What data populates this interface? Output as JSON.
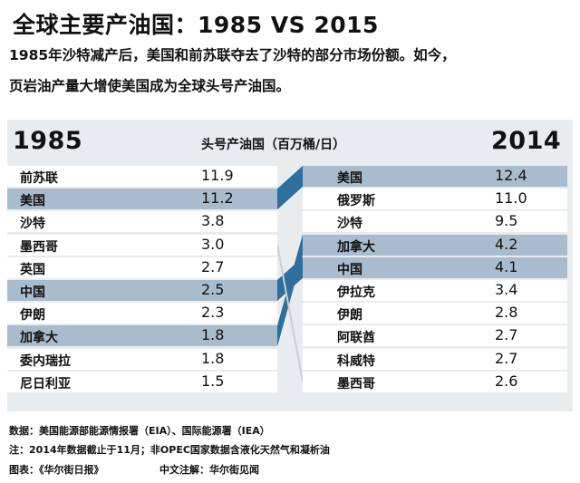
{
  "header": {
    "title": "全球主要产油国：1985 VS 2015",
    "subtitle_line1": "1985年沙特减产后，美国和前苏联夺去了沙特的部分市场份额。如今，",
    "subtitle_line2": "页岩油产量大增使美国成为全球头号产油国。"
  },
  "chart_data": {
    "type": "table",
    "unit_label": "头号产油国（百万桶/日）",
    "left": {
      "year": "1985",
      "rows": [
        {
          "country": "前苏联",
          "value": "11.9",
          "highlight": false
        },
        {
          "country": "美国",
          "value": "11.2",
          "highlight": true
        },
        {
          "country": "沙特",
          "value": "3.8",
          "highlight": false
        },
        {
          "country": "墨西哥",
          "value": "3.0",
          "highlight": false
        },
        {
          "country": "英国",
          "value": "2.7",
          "highlight": false
        },
        {
          "country": "中国",
          "value": "2.5",
          "highlight": true
        },
        {
          "country": "伊朗",
          "value": "2.3",
          "highlight": false
        },
        {
          "country": "加拿大",
          "value": "1.8",
          "highlight": true
        },
        {
          "country": "委内瑞拉",
          "value": "1.8",
          "highlight": false
        },
        {
          "country": "尼日利亚",
          "value": "1.5",
          "highlight": false
        }
      ]
    },
    "right": {
      "year": "2014",
      "rows": [
        {
          "country": "美国",
          "value": "12.4",
          "highlight": true
        },
        {
          "country": "俄罗斯",
          "value": "11.0",
          "highlight": false
        },
        {
          "country": "沙特",
          "value": "9.5",
          "highlight": false
        },
        {
          "country": "加拿大",
          "value": "4.2",
          "highlight": true
        },
        {
          "country": "中国",
          "value": "4.1",
          "highlight": true
        },
        {
          "country": "伊拉克",
          "value": "3.4",
          "highlight": false
        },
        {
          "country": "伊朗",
          "value": "2.8",
          "highlight": false
        },
        {
          "country": "阿联酋",
          "value": "2.7",
          "highlight": false
        },
        {
          "country": "科威特",
          "value": "2.7",
          "highlight": false
        },
        {
          "country": "墨西哥",
          "value": "2.6",
          "highlight": false
        }
      ]
    },
    "connections": [
      {
        "from": "美国",
        "to": "美国",
        "style": "band"
      },
      {
        "from": "中国",
        "to": "中国",
        "style": "band"
      },
      {
        "from": "加拿大",
        "to": "加拿大",
        "style": "band"
      },
      {
        "from": "墨西哥",
        "to": "墨西哥",
        "style": "line"
      }
    ]
  },
  "footer": {
    "source": "数据：美国能源部能源情报署（EIA）、国际能源署（IEA）",
    "note": "注：2014年数据截止于11月；非OPEC国家数据含液化天然气和凝析油",
    "chart_credit": "图表：《华尔街日报》",
    "translation_credit": "中文注解：华尔街见闻"
  },
  "colors": {
    "highlight": "#a9bcce",
    "band": "#2e6f9e",
    "row_bg": "#ffffff",
    "panel_bg": "#e9ecef"
  }
}
